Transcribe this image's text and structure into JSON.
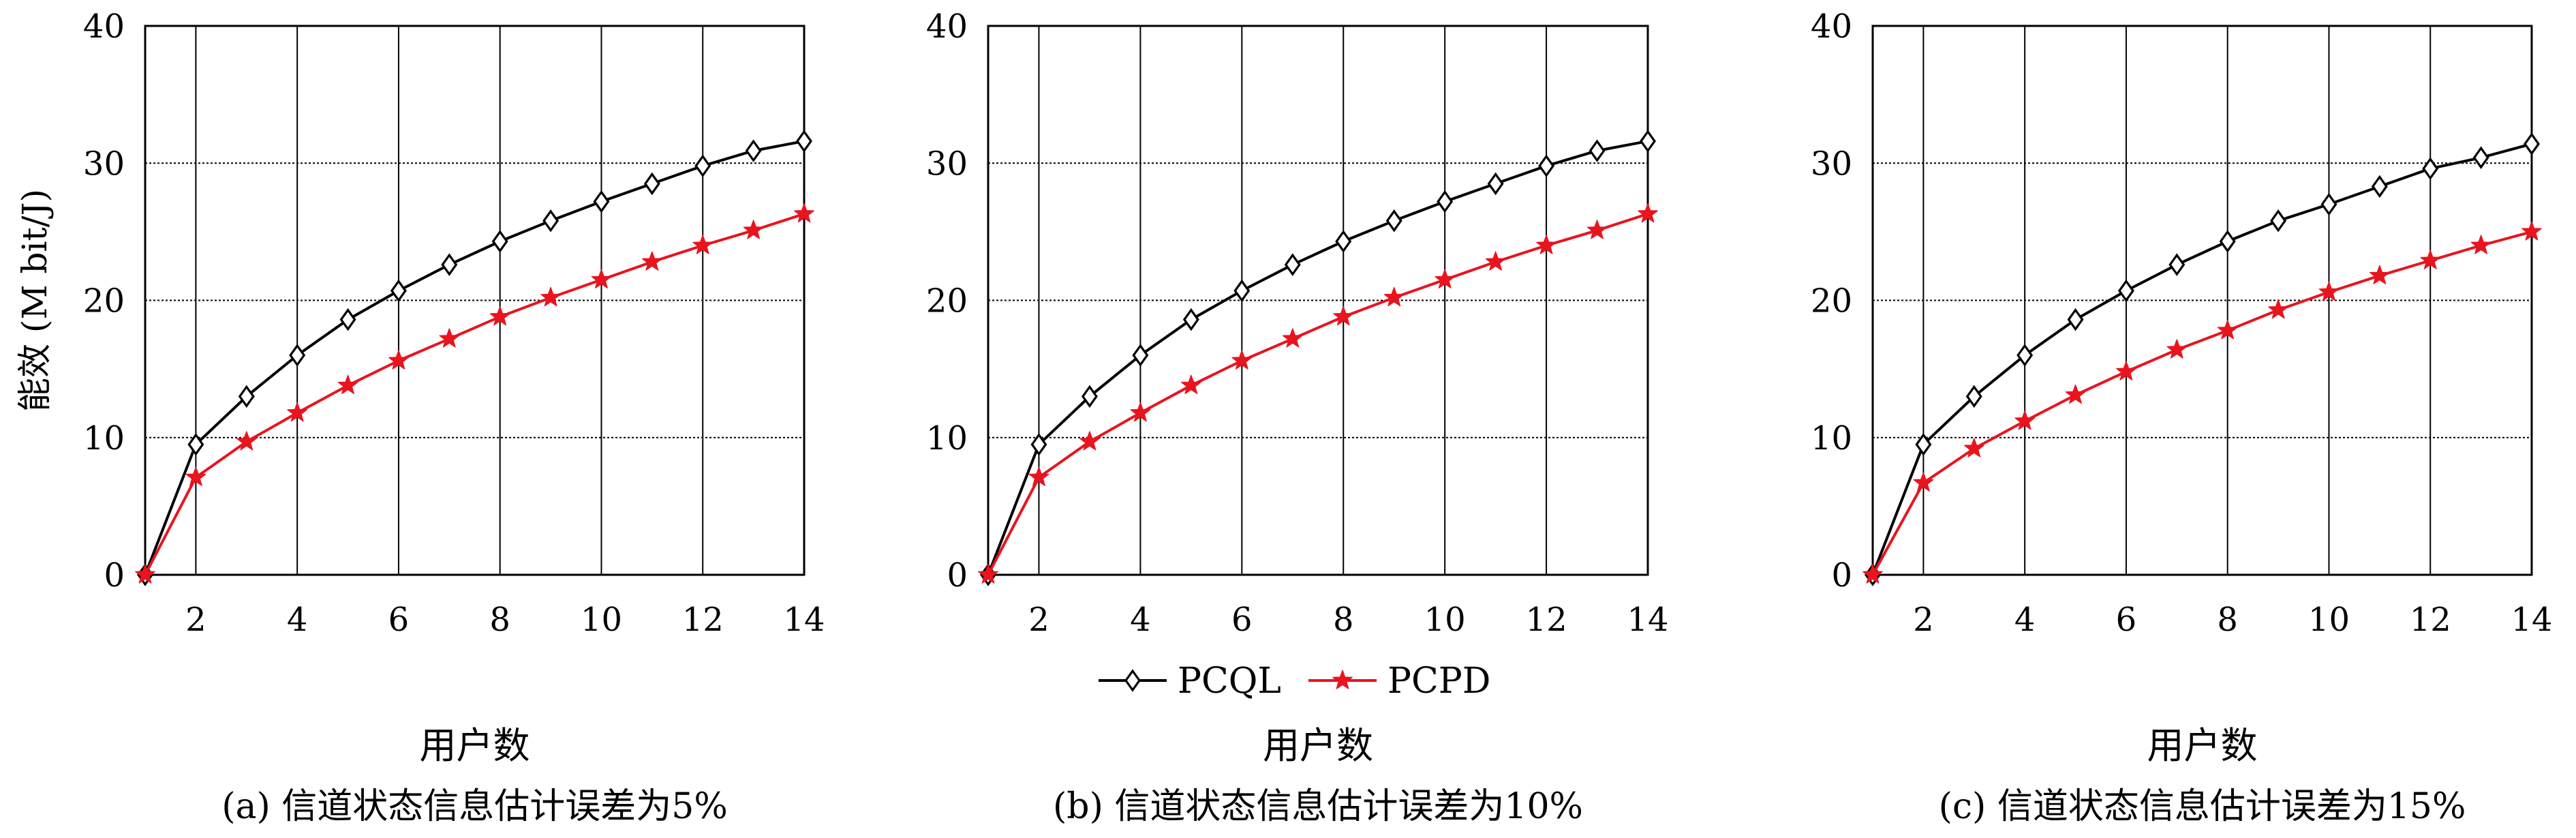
{
  "chart_data": [
    {
      "type": "line",
      "caption": "(a) 信道状态信息估计误差为5%",
      "xlabel": "用户数",
      "ylabel": "能效 (M bit/J)",
      "xlim": [
        1,
        14
      ],
      "ylim": [
        0,
        40
      ],
      "xticks": [
        2,
        4,
        6,
        8,
        10,
        12,
        14
      ],
      "yticks": [
        0,
        10,
        20,
        30,
        40
      ],
      "grid": true,
      "x": [
        1,
        2,
        3,
        4,
        5,
        6,
        7,
        8,
        9,
        10,
        11,
        12,
        13,
        14
      ],
      "series": [
        {
          "name": "PCQL",
          "color": "#000000",
          "marker": "diamond",
          "values": [
            0,
            9.5,
            13.0,
            16.0,
            18.6,
            20.7,
            22.6,
            24.3,
            25.8,
            27.2,
            28.5,
            29.8,
            30.9,
            31.6
          ]
        },
        {
          "name": "PCPD",
          "color": "#e8141e",
          "marker": "star",
          "values": [
            0,
            7.1,
            9.7,
            11.8,
            13.8,
            15.6,
            17.2,
            18.8,
            20.2,
            21.5,
            22.8,
            24.0,
            25.1,
            26.3
          ]
        }
      ]
    },
    {
      "type": "line",
      "caption": "(b) 信道状态信息估计误差为10%",
      "xlabel": "用户数",
      "ylabel": "",
      "xlim": [
        1,
        14
      ],
      "ylim": [
        0,
        40
      ],
      "xticks": [
        2,
        4,
        6,
        8,
        10,
        12,
        14
      ],
      "yticks": [
        0,
        10,
        20,
        30,
        40
      ],
      "grid": true,
      "legend": "bottom-center",
      "x": [
        1,
        2,
        3,
        4,
        5,
        6,
        7,
        8,
        9,
        10,
        11,
        12,
        13,
        14
      ],
      "series": [
        {
          "name": "PCQL",
          "color": "#000000",
          "marker": "diamond",
          "values": [
            0,
            9.5,
            13.0,
            16.0,
            18.6,
            20.7,
            22.6,
            24.3,
            25.8,
            27.2,
            28.5,
            29.8,
            30.9,
            31.6
          ]
        },
        {
          "name": "PCPD",
          "color": "#e8141e",
          "marker": "star",
          "values": [
            0,
            7.1,
            9.7,
            11.8,
            13.8,
            15.6,
            17.2,
            18.8,
            20.2,
            21.5,
            22.8,
            24.0,
            25.1,
            26.3
          ]
        }
      ]
    },
    {
      "type": "line",
      "caption": "(c) 信道状态信息估计误差为15%",
      "xlabel": "用户数",
      "ylabel": "",
      "xlim": [
        1,
        14
      ],
      "ylim": [
        0,
        40
      ],
      "xticks": [
        2,
        4,
        6,
        8,
        10,
        12,
        14
      ],
      "yticks": [
        0,
        10,
        20,
        30,
        40
      ],
      "grid": true,
      "x": [
        1,
        2,
        3,
        4,
        5,
        6,
        7,
        8,
        9,
        10,
        11,
        12,
        13,
        14
      ],
      "series": [
        {
          "name": "PCQL",
          "color": "#000000",
          "marker": "diamond",
          "values": [
            0,
            9.5,
            13.0,
            16.0,
            18.6,
            20.7,
            22.6,
            24.3,
            25.8,
            27.0,
            28.3,
            29.6,
            30.4,
            31.4
          ]
        },
        {
          "name": "PCPD",
          "color": "#e8141e",
          "marker": "star",
          "values": [
            0,
            6.7,
            9.2,
            11.2,
            13.1,
            14.8,
            16.4,
            17.8,
            19.3,
            20.6,
            21.8,
            22.9,
            24.0,
            25.0
          ]
        }
      ]
    }
  ],
  "legend": {
    "items": [
      {
        "label": "PCQL",
        "color": "#000000",
        "marker": "diamond"
      },
      {
        "label": "PCPD",
        "color": "#e8141e",
        "marker": "star"
      }
    ]
  }
}
